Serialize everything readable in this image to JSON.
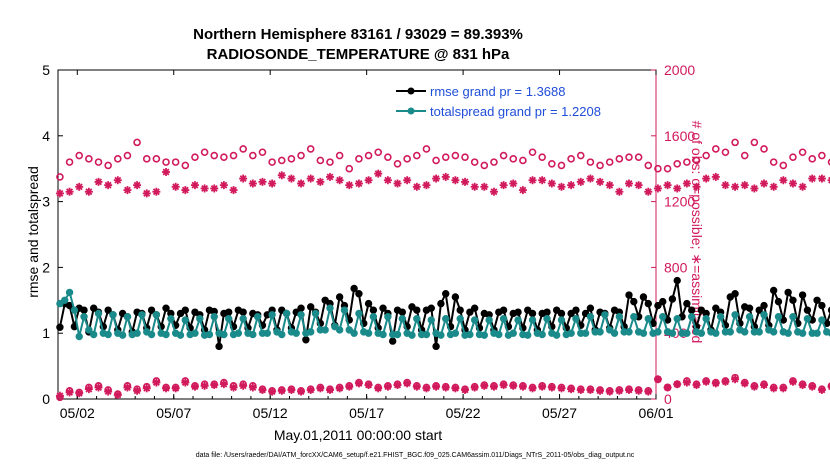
{
  "title_line1": "Northern Hemisphere 83161 / 93029 = 89.393%",
  "title_line2": "RADIOSONDE_TEMPERATURE @ 831 hPa",
  "xlabel": "May.01,2011 00:00:00 start",
  "ylabel_left": "rmse and totalspread",
  "ylabel_right": "# of obs: o=possible; ∗=assimilated",
  "footer": "data file: /Users/raeder/DAI/ATM_forcXX/CAM6_setup/f.e21.FHIST_BGC.f09_025.CAM6assim.011/Diags_NTrS_2011-05/obs_diag_output.nc",
  "colors": {
    "black": "#000000",
    "teal": "#1a8a8a",
    "magenta": "#d11a5c",
    "legend_text": "#1f4ed8"
  },
  "chart_data": {
    "type": "line",
    "x_tick_labels": [
      "05/02",
      "05/07",
      "05/12",
      "05/17",
      "05/22",
      "05/27",
      "06/01"
    ],
    "x_tick_days": [
      1,
      6,
      11,
      16,
      21,
      26,
      31
    ],
    "xlim": [
      0,
      31
    ],
    "ylim_left": [
      0,
      5
    ],
    "ylim_right": [
      0,
      2000
    ],
    "y_ticks_left": [
      "0",
      "1",
      "2",
      "3",
      "4",
      "5"
    ],
    "y_ticks_right": [
      "0",
      "400",
      "800",
      "1200",
      "1600",
      "2000"
    ],
    "legend": [
      {
        "label": "rmse grand pr = 1.3688",
        "color": "#000000"
      },
      {
        "label": "totalspread grand pr = 1.2208",
        "color": "#1a8a8a"
      }
    ],
    "series": [
      {
        "name": "rmse grand pr = 1.3688",
        "axis": "left",
        "step_days": 0.25,
        "values": [
          1.09,
          1.45,
          1.42,
          1.1,
          1.38,
          1.35,
          1.02,
          1.38,
          1.32,
          1.1,
          1.35,
          1.28,
          1.05,
          1.3,
          1.25,
          1.02,
          1.32,
          1.3,
          1.08,
          1.35,
          1.28,
          1.1,
          1.38,
          1.3,
          1.12,
          1.3,
          1.35,
          1.08,
          1.32,
          1.28,
          1.05,
          1.35,
          1.33,
          0.8,
          1.3,
          1.32,
          1.1,
          1.35,
          1.32,
          1.08,
          1.3,
          1.28,
          1.12,
          1.28,
          1.35,
          1.05,
          1.35,
          1.3,
          1.08,
          1.32,
          1.38,
          0.9,
          1.4,
          1.32,
          1.15,
          1.5,
          1.45,
          1.12,
          1.55,
          1.42,
          1.2,
          1.68,
          1.6,
          1.15,
          1.45,
          1.35,
          1.08,
          1.38,
          1.3,
          0.88,
          1.35,
          1.32,
          1.1,
          1.4,
          1.35,
          1.05,
          1.35,
          1.38,
          0.8,
          1.45,
          1.6,
          1.1,
          1.55,
          1.35,
          1.05,
          1.32,
          1.38,
          1.08,
          1.3,
          1.28,
          1.05,
          1.32,
          1.35,
          1.1,
          1.3,
          1.32,
          1.08,
          1.35,
          1.3,
          1.05,
          1.3,
          1.32,
          1.1,
          1.35,
          1.3,
          1.08,
          1.3,
          1.35,
          1.12,
          1.3,
          1.38,
          1.05,
          1.32,
          1.3,
          1.08,
          1.35,
          1.32,
          1.1,
          1.58,
          1.48,
          1.25,
          1.55,
          1.45,
          1.15,
          1.42,
          1.48,
          1.2,
          1.52,
          1.8,
          1.25,
          1.45,
          1.35,
          1.1,
          1.35,
          1.3,
          1.05,
          1.38,
          1.32,
          1.12,
          1.55,
          1.6,
          1.15,
          1.4,
          1.38,
          1.1,
          1.35,
          1.42,
          1.12,
          1.65,
          1.48,
          1.2,
          1.62,
          1.5,
          1.15,
          1.58,
          1.35,
          1.2,
          1.5,
          1.42,
          1.15,
          1.35,
          1.3,
          1.1,
          1.32,
          1.05
        ]
      },
      {
        "name": "totalspread grand pr = 1.2208",
        "axis": "left",
        "step_days": 0.25,
        "values": [
          1.45,
          1.5,
          1.62,
          1.35,
          0.95,
          1.25,
          1.05,
          0.98,
          1.3,
          1.0,
          0.98,
          1.28,
          1.0,
          0.97,
          1.25,
          0.98,
          1.0,
          1.28,
          1.02,
          0.98,
          1.28,
          1.0,
          0.98,
          1.22,
          1.0,
          0.97,
          1.2,
          0.98,
          1.0,
          1.22,
          0.97,
          0.98,
          1.25,
          1.0,
          0.98,
          1.22,
          0.98,
          1.0,
          1.22,
          1.0,
          0.98,
          1.25,
          1.0,
          1.0,
          1.28,
          1.02,
          0.98,
          1.3,
          1.02,
          1.0,
          1.28,
          1.0,
          1.02,
          1.3,
          1.05,
          1.05,
          1.38,
          1.1,
          1.05,
          1.35,
          1.05,
          1.0,
          1.3,
          1.02,
          1.0,
          1.25,
          1.0,
          0.98,
          1.25,
          0.98,
          0.98,
          1.22,
          1.0,
          0.97,
          1.22,
          0.98,
          0.98,
          1.2,
          1.0,
          0.97,
          1.22,
          0.98,
          1.0,
          1.22,
          0.97,
          0.98,
          1.2,
          0.98,
          0.97,
          1.2,
          1.0,
          0.98,
          1.22,
          0.97,
          1.0,
          1.2,
          0.98,
          0.97,
          1.2,
          1.0,
          0.98,
          1.22,
          1.0,
          0.97,
          1.2,
          0.98,
          1.0,
          1.22,
          1.0,
          1.0,
          1.25,
          1.02,
          1.02,
          1.28,
          1.05,
          1.0,
          1.25,
          1.02,
          1.02,
          1.25,
          1.02,
          1.0,
          1.22,
          1.0,
          1.02,
          1.25,
          1.02,
          1.0,
          1.22,
          1.0,
          1.0,
          1.25,
          1.02,
          1.0,
          1.22,
          1.02,
          1.0,
          1.25,
          1.02,
          1.02,
          1.28,
          1.05,
          1.02,
          1.25,
          1.02,
          1.02,
          1.28,
          1.05,
          1.02,
          1.25,
          1.02,
          1.0,
          1.25,
          1.02,
          1.0,
          1.22,
          1.0,
          1.0,
          1.2,
          1.02,
          1.0,
          1.22,
          1.0,
          1.25,
          1.02
        ]
      },
      {
        "name": "obs possible",
        "axis": "right",
        "marker": "circle",
        "step_days": 0.5,
        "values": [
          1350,
          1440,
          1480,
          1460,
          1440,
          1420,
          1460,
          1480,
          1560,
          1460,
          1460,
          1440,
          1440,
          1420,
          1470,
          1500,
          1480,
          1470,
          1480,
          1520,
          1480,
          1500,
          1440,
          1450,
          1460,
          1480,
          1520,
          1450,
          1440,
          1480,
          1400,
          1460,
          1480,
          1500,
          1470,
          1430,
          1460,
          1480,
          1520,
          1450,
          1470,
          1480,
          1470,
          1440,
          1420,
          1440,
          1480,
          1460,
          1450,
          1500,
          1470,
          1430,
          1420,
          1460,
          1480,
          1440,
          1420,
          1440,
          1460,
          1470,
          1470,
          1420,
          1400,
          1400,
          1430,
          1440,
          1450,
          1480,
          1520,
          1500,
          1560,
          1480,
          1560,
          1520,
          1440,
          1420,
          1470,
          1500,
          1460,
          1480,
          1440,
          1450,
          1520,
          1510,
          1500,
          1500,
          1420,
          1480,
          1460,
          1520,
          1500,
          1470,
          1460,
          1500,
          1480,
          1500,
          1480,
          1500
        ]
      },
      {
        "name": "obs assimilated",
        "axis": "right",
        "marker": "star",
        "step_days": 0.5,
        "values": [
          1250,
          1260,
          1290,
          1260,
          1320,
          1300,
          1330,
          1270,
          1300,
          1250,
          1260,
          1380,
          1290,
          1270,
          1300,
          1280,
          1280,
          1300,
          1270,
          1340,
          1310,
          1320,
          1310,
          1360,
          1340,
          1310,
          1340,
          1320,
          1350,
          1330,
          1300,
          1310,
          1330,
          1370,
          1330,
          1310,
          1330,
          1290,
          1300,
          1340,
          1350,
          1330,
          1320,
          1290,
          1290,
          1260,
          1300,
          1310,
          1270,
          1330,
          1330,
          1310,
          1290,
          1300,
          1320,
          1340,
          1320,
          1300,
          1260,
          1310,
          1300,
          1260,
          1280,
          1300,
          1280,
          1310,
          1290,
          1340,
          1350,
          1300,
          1290,
          1300,
          1280,
          1310,
          1290,
          1330,
          1310,
          1290,
          1340,
          1340,
          1330,
          1340,
          1320,
          1310,
          1300,
          1360,
          1320,
          1300,
          1340,
          1300,
          1310,
          1340,
          1320,
          1300,
          1320,
          1340,
          1300,
          1330
        ]
      },
      {
        "name": "obs low possible",
        "axis": "right",
        "marker": "circle",
        "step_days": 0.5,
        "values": [
          10,
          50,
          40,
          70,
          80,
          55,
          30,
          80,
          60,
          75,
          110,
          70,
          70,
          110,
          80,
          90,
          90,
          100,
          80,
          90,
          80,
          60,
          50,
          55,
          60,
          50,
          60,
          70,
          60,
          70,
          80,
          100,
          90,
          70,
          80,
          90,
          100,
          80,
          70,
          80,
          75,
          70,
          60,
          75,
          85,
          80,
          90,
          85,
          80,
          70,
          80,
          75,
          70,
          65,
          60,
          60,
          55,
          50,
          55,
          60,
          55,
          50,
          120,
          70,
          90,
          110,
          90,
          110,
          100,
          110,
          130,
          100,
          80,
          90,
          70,
          70,
          110,
          90,
          80,
          60,
          80,
          70,
          60,
          80,
          70,
          70,
          60,
          90,
          70,
          75,
          90,
          75,
          70,
          90,
          75,
          100,
          110,
          90
        ]
      },
      {
        "name": "obs low assimilated",
        "axis": "right",
        "marker": "star",
        "step_days": 0.5,
        "values": [
          20,
          40,
          35,
          60,
          70,
          45,
          25,
          70,
          50,
          65,
          100,
          65,
          65,
          100,
          75,
          80,
          85,
          90,
          70,
          80,
          70,
          55,
          45,
          50,
          55,
          45,
          55,
          65,
          55,
          65,
          75,
          95,
          85,
          65,
          75,
          85,
          95,
          75,
          65,
          75,
          70,
          65,
          55,
          70,
          80,
          75,
          85,
          80,
          75,
          65,
          75,
          70,
          65,
          60,
          55,
          55,
          50,
          45,
          50,
          55,
          50,
          45,
          120,
          70,
          90,
          100,
          85,
          105,
          95,
          105,
          120,
          95,
          75,
          85,
          65,
          65,
          105,
          85,
          75,
          55,
          75,
          65,
          55,
          75,
          65,
          65,
          55,
          85,
          65,
          70,
          85,
          70,
          65,
          85,
          70,
          95,
          100,
          85
        ]
      }
    ]
  }
}
